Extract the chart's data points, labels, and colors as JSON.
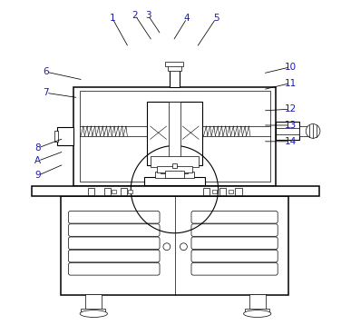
{
  "bg_color": "#ffffff",
  "line_color": "#000000",
  "label_color": "#1a1aaa",
  "fig_width": 3.87,
  "fig_height": 3.58,
  "dpi": 100,
  "annotations": [
    [
      "1",
      [
        0.305,
        0.945
      ],
      [
        0.355,
        0.855
      ]
    ],
    [
      "2",
      [
        0.375,
        0.955
      ],
      [
        0.428,
        0.875
      ]
    ],
    [
      "3",
      [
        0.415,
        0.955
      ],
      [
        0.455,
        0.895
      ]
    ],
    [
      "4",
      [
        0.535,
        0.945
      ],
      [
        0.492,
        0.875
      ]
    ],
    [
      "5",
      [
        0.625,
        0.945
      ],
      [
        0.565,
        0.855
      ]
    ],
    [
      "6",
      [
        0.1,
        0.78
      ],
      [
        0.215,
        0.755
      ]
    ],
    [
      "7",
      [
        0.1,
        0.715
      ],
      [
        0.2,
        0.7
      ]
    ],
    [
      "8",
      [
        0.075,
        0.545
      ],
      [
        0.155,
        0.575
      ]
    ],
    [
      "A",
      [
        0.075,
        0.505
      ],
      [
        0.155,
        0.535
      ]
    ],
    [
      "9",
      [
        0.075,
        0.46
      ],
      [
        0.155,
        0.495
      ]
    ],
    [
      "10",
      [
        0.855,
        0.795
      ],
      [
        0.77,
        0.775
      ]
    ],
    [
      "11",
      [
        0.855,
        0.745
      ],
      [
        0.77,
        0.725
      ]
    ],
    [
      "12",
      [
        0.855,
        0.665
      ],
      [
        0.77,
        0.66
      ]
    ],
    [
      "13",
      [
        0.855,
        0.615
      ],
      [
        0.77,
        0.615
      ]
    ],
    [
      "14",
      [
        0.855,
        0.565
      ],
      [
        0.77,
        0.565
      ]
    ]
  ]
}
